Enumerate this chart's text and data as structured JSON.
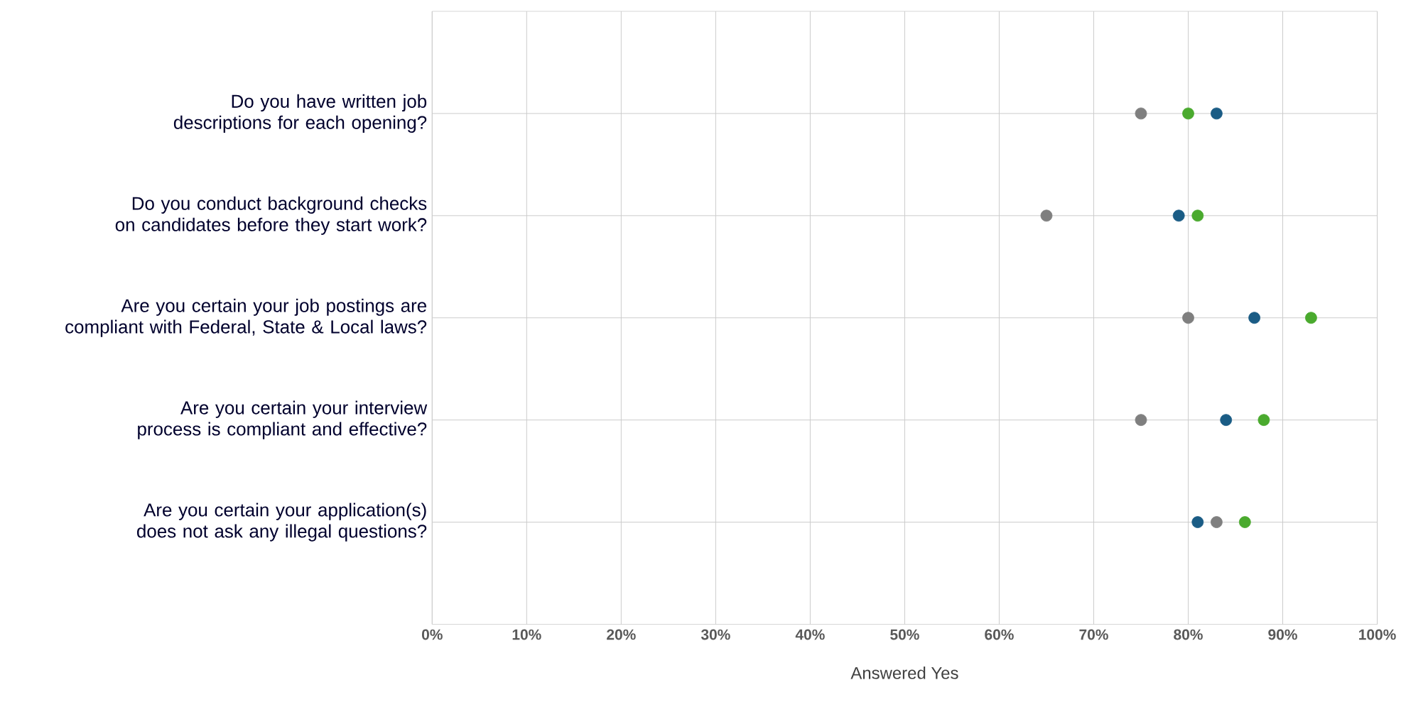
{
  "chart_data": {
    "type": "scatter",
    "xlabel": "Answered Yes",
    "categories": [
      "Do you have written job descriptions for each opening?",
      "Do you conduct background checks on candidates before they start work?",
      "Are you certain your job postings are compliant with Federal, State & Local laws?",
      "Are you certain your interview process is compliant and effective?",
      "Are you certain your application(s) does not ask any illegal questions?"
    ],
    "orientation": "horizontal",
    "series": [
      {
        "color": "#7f7f7f",
        "values": [
          75,
          65,
          80,
          75,
          83
        ]
      },
      {
        "color": "#4aaa2e",
        "values": [
          80,
          81,
          93,
          88,
          86
        ]
      },
      {
        "color": "#1a5c85",
        "values": [
          83,
          79,
          87,
          84,
          81
        ]
      }
    ],
    "xlim": [
      0,
      100
    ],
    "xticks": [
      {
        "value": 0,
        "label": "0%"
      },
      {
        "value": 10,
        "label": "10%"
      },
      {
        "value": 20,
        "label": "20%"
      },
      {
        "value": 30,
        "label": "30%"
      },
      {
        "value": 40,
        "label": "40%"
      },
      {
        "value": 50,
        "label": "50%"
      },
      {
        "value": 60,
        "label": "60%"
      },
      {
        "value": 70,
        "label": "70%"
      },
      {
        "value": 80,
        "label": "80%"
      },
      {
        "value": 90,
        "label": "90%"
      },
      {
        "value": 100,
        "label": "100%"
      }
    ],
    "grid": true,
    "marker": "circle"
  }
}
